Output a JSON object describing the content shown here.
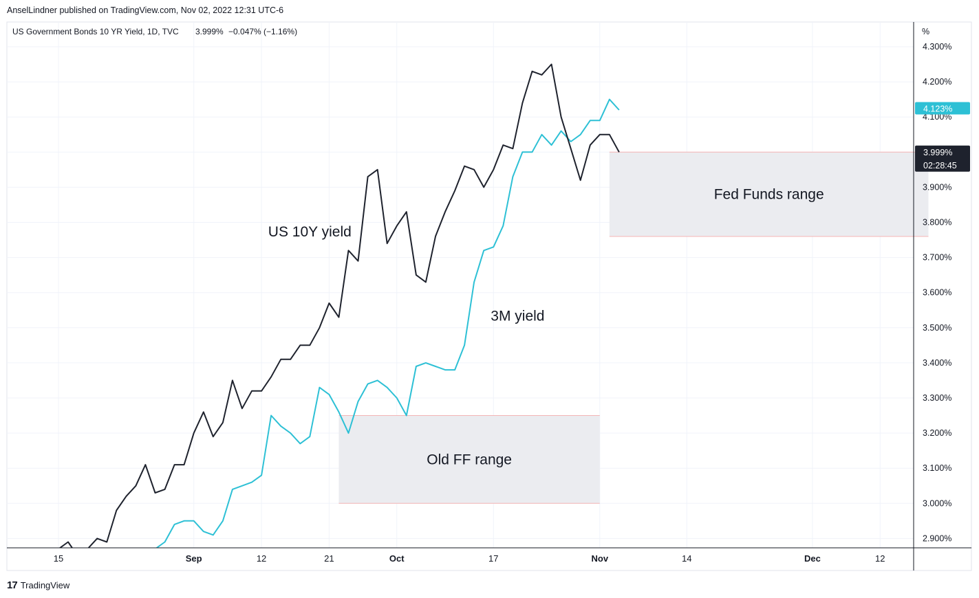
{
  "header": {
    "published_by": "AnselLindner published on TradingView.com, Nov 02, 2022 12:31 UTC-6"
  },
  "legend": {
    "symbol": "US Government Bonds 10 YR Yield, 1D, TVC",
    "last": "3.999%",
    "change": "−0.047% (−1.16%)"
  },
  "footer": {
    "brand": "TradingView",
    "logo_icon": "tradingview-logo-icon"
  },
  "colors": {
    "us10y": "#1e222d",
    "us3m": "#2dc0d5",
    "box_fill": "#ebecf0",
    "box_border": "#f4b4b4",
    "grid": "#f0f3fa",
    "axis_text": "#131722",
    "price_tag_dark": "#1e222d"
  },
  "chart_data": {
    "type": "line",
    "x_labels": [
      "15",
      "Sep",
      "12",
      "21",
      "Oct",
      "17",
      "Nov",
      "14",
      "Dec",
      "12"
    ],
    "x_label_bars": [
      0,
      14,
      21,
      28,
      35,
      45,
      56,
      65,
      78,
      85
    ],
    "bold_x_labels": [
      "Sep",
      "Oct",
      "Nov",
      "Dec"
    ],
    "y_unit": "%",
    "ylim": [
      2.87,
      4.33
    ],
    "y_ticks": [
      2.9,
      3.0,
      3.1,
      3.2,
      3.3,
      3.4,
      3.5,
      3.6,
      3.7,
      3.8,
      3.9,
      4.0,
      4.1,
      4.2,
      4.3
    ],
    "y_tick_labels": [
      "2.900%",
      "3.000%",
      "3.100%",
      "3.200%",
      "3.300%",
      "3.400%",
      "3.500%",
      "3.600%",
      "3.700%",
      "3.800%",
      "3.900%",
      "4.000%",
      "4.100%",
      "4.200%",
      "4.300%"
    ],
    "grid": true,
    "series": [
      {
        "key": "us10y",
        "start_bar": -2,
        "values": [
          2.87,
          2.87,
          2.87,
          2.89,
          2.85,
          2.87,
          2.9,
          2.89,
          2.98,
          3.02,
          3.05,
          3.11,
          3.03,
          3.04,
          3.11,
          3.11,
          3.2,
          3.26,
          3.19,
          3.23,
          3.35,
          3.27,
          3.32,
          3.32,
          3.36,
          3.41,
          3.41,
          3.45,
          3.45,
          3.5,
          3.57,
          3.53,
          3.72,
          3.69,
          3.93,
          3.95,
          3.74,
          3.79,
          3.83,
          3.65,
          3.63,
          3.76,
          3.83,
          3.89,
          3.96,
          3.95,
          3.9,
          3.95,
          4.02,
          4.01,
          4.14,
          4.23,
          4.22,
          4.25,
          4.1,
          4.01,
          3.92,
          4.02,
          4.05,
          4.05,
          4.0
        ]
      },
      {
        "key": "us3m",
        "start_bar": 9,
        "values": [
          2.87,
          2.87,
          2.89,
          2.94,
          2.95,
          2.95,
          2.92,
          2.91,
          2.95,
          3.04,
          3.05,
          3.06,
          3.08,
          3.25,
          3.22,
          3.2,
          3.17,
          3.19,
          3.33,
          3.31,
          3.26,
          3.2,
          3.29,
          3.34,
          3.35,
          3.33,
          3.3,
          3.25,
          3.39,
          3.4,
          3.39,
          3.38,
          3.38,
          3.45,
          3.63,
          3.72,
          3.73,
          3.79,
          3.93,
          4.0,
          4.0,
          4.05,
          4.02,
          4.06,
          4.03,
          4.05,
          4.09,
          4.09,
          4.15,
          4.12
        ]
      }
    ],
    "annotations": [
      {
        "text": "US 10Y yield",
        "bar": 26,
        "y": 3.76
      },
      {
        "text": "3M yield",
        "bar": 47.5,
        "y": 3.52
      },
      {
        "text": "Fed Funds range",
        "box": {
          "x0_bar": 57,
          "x1_bar": 90,
          "y0": 3.76,
          "y1": 4.0
        }
      },
      {
        "text": "Old FF range",
        "box": {
          "x0_bar": 29,
          "x1_bar": 56,
          "y0": 3.0,
          "y1": 3.25
        }
      }
    ],
    "price_tags": [
      {
        "series": "us3m",
        "value": 4.123,
        "label": "4.123%"
      },
      {
        "series": "us10y",
        "value": 3.999,
        "label": "3.999%",
        "countdown": "02:28:45"
      }
    ]
  }
}
